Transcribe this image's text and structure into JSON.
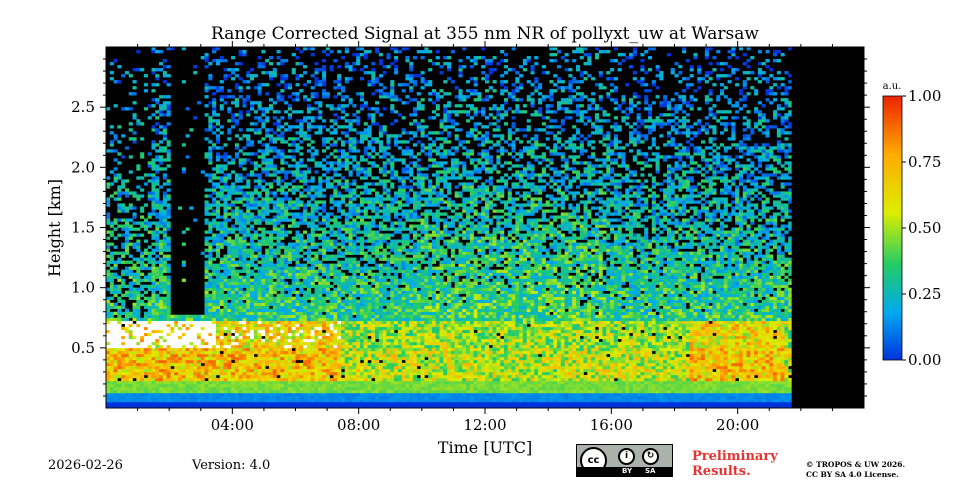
{
  "chart_data": {
    "type": "heatmap",
    "title": "Range Corrected Signal at 355 nm NR of pollyxt_uw at Warsaw",
    "xlabel": "Time [UTC]",
    "ylabel": "Height [km]",
    "xlim_hours": [
      0,
      24
    ],
    "ylim_km": [
      0,
      3.0
    ],
    "x_ticks": [
      {
        "value": 4,
        "label": "04:00"
      },
      {
        "value": 8,
        "label": "08:00"
      },
      {
        "value": 12,
        "label": "12:00"
      },
      {
        "value": 16,
        "label": "16:00"
      },
      {
        "value": 20,
        "label": "20:00"
      }
    ],
    "y_ticks": [
      {
        "value": 0.5,
        "label": "0.5"
      },
      {
        "value": 1.0,
        "label": "1.0"
      },
      {
        "value": 1.5,
        "label": "1.5"
      },
      {
        "value": 2.0,
        "label": "2.0"
      },
      {
        "value": 2.5,
        "label": "2.5"
      }
    ],
    "colorbar": {
      "label": "a.u.",
      "range": [
        0.0,
        1.0
      ],
      "ticks": [
        {
          "value": 0.0,
          "label": "0.00"
        },
        {
          "value": 0.25,
          "label": "0.25"
        },
        {
          "value": 0.5,
          "label": "0.50"
        },
        {
          "value": 0.75,
          "label": "0.75"
        },
        {
          "value": 1.0,
          "label": "1.00"
        }
      ],
      "colors": [
        "#0033dd",
        "#00aaee",
        "#22cc66",
        "#ddee00",
        "#ffaa00",
        "#ee2200"
      ]
    },
    "data_end_hour": 21.7,
    "boundary_layer_top_km": 0.72,
    "no_signal_gap_hours": [
      2.1,
      3.1
    ],
    "saturated_cloud_hours": [
      0.0,
      7.5
    ]
  },
  "footer": {
    "date": "2026-02-26",
    "version": "Version: 4.0",
    "preliminary": [
      "Preliminary",
      "Results."
    ],
    "copyright": [
      "© TROPOS & UW 2026.",
      "CC BY SA 4.0 License."
    ],
    "license_badge": {
      "cc": "cc",
      "by": "BY",
      "sa": "SA",
      "icon_by": "person-icon",
      "icon_sa": "share-alike-icon"
    }
  }
}
